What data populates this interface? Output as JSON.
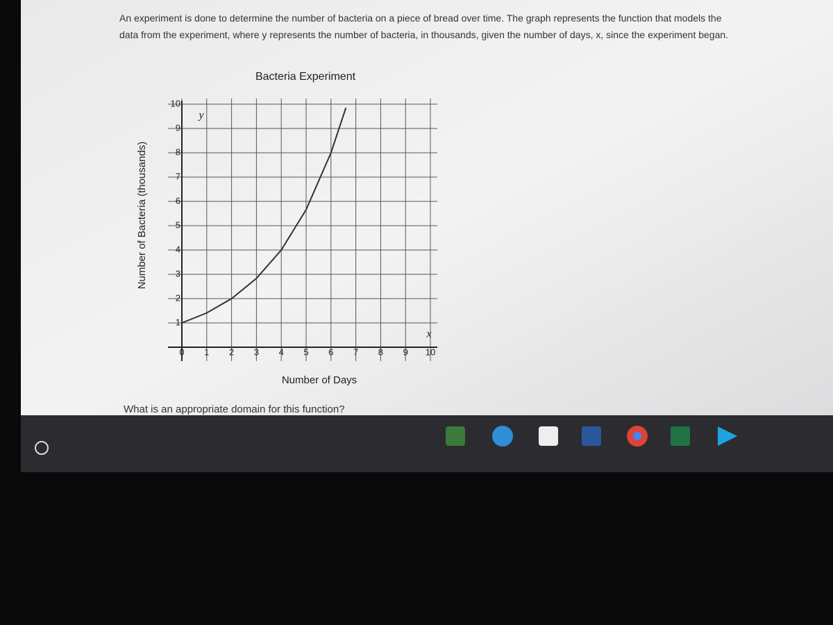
{
  "question": "An experiment is done to determine the number of bacteria on a piece of bread over time. The graph represents the function that models the data from the experiment, where y represents the number of bacteria, in thousands, given the number of days, x, since the experiment began.",
  "chart_data": {
    "type": "line",
    "title": "Bacteria Experiment",
    "x_label": "Number of Days",
    "y_label": "Number of Bacteria (thousands)",
    "x_var": "x",
    "y_var": "y",
    "x": [
      0,
      1,
      2,
      3,
      4,
      5,
      6,
      6.6
    ],
    "series": [
      {
        "color": "#333333",
        "values": [
          1,
          1.41,
          2,
          2.83,
          4,
          5.66,
          8,
          9.85
        ]
      }
    ],
    "xlim": [
      0,
      10
    ],
    "ylim": [
      0,
      10
    ],
    "xticks": [
      0,
      1,
      2,
      3,
      4,
      5,
      6,
      7,
      8,
      9,
      10
    ],
    "yticks": [
      1,
      2,
      3,
      4,
      5,
      6,
      7,
      8,
      9,
      10
    ],
    "grid": true
  },
  "prompt": "What is an appropriate domain for this function?"
}
